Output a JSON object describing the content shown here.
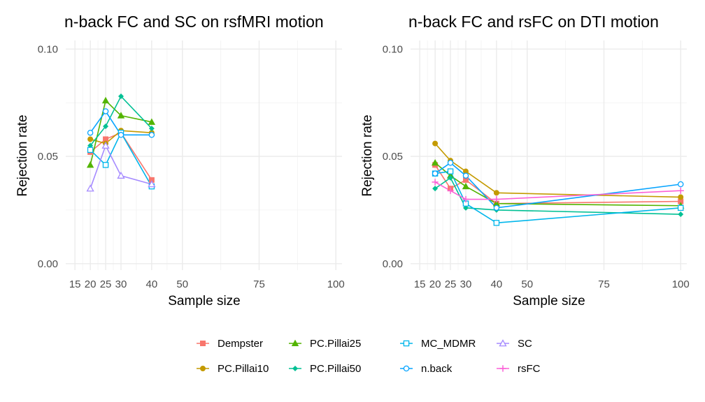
{
  "legend": {
    "position": "bottom",
    "entries": [
      {
        "name": "Dempster",
        "color": "#F8766D",
        "marker": "square-filled"
      },
      {
        "name": "PC.Pillai10",
        "color": "#C49A00",
        "marker": "circle-filled"
      },
      {
        "name": "PC.Pillai25",
        "color": "#53B400",
        "marker": "triangle-filled"
      },
      {
        "name": "PC.Pillai50",
        "color": "#00C094",
        "marker": "diamond-filled"
      },
      {
        "name": "MC_MDMR",
        "color": "#00B6EB",
        "marker": "square-open"
      },
      {
        "name": "n.back",
        "color": "#06A4FF",
        "marker": "circle-open"
      },
      {
        "name": "SC",
        "color": "#A58AFF",
        "marker": "triangle-open"
      },
      {
        "name": "rsFC",
        "color": "#FB61D7",
        "marker": "plus"
      }
    ]
  },
  "chart_data": [
    {
      "type": "line",
      "title": "n-back FC and SC on rsfMRI motion",
      "xlabel": "Sample size",
      "ylabel": "Rejection rate",
      "xticks": [
        15,
        20,
        25,
        30,
        40,
        50,
        75,
        100
      ],
      "yticks": [
        "0.00",
        "0.05",
        "0.10"
      ],
      "xlim": [
        12,
        102
      ],
      "ylim": [
        -0.003,
        0.104
      ],
      "grid": true,
      "series": [
        {
          "name": "Dempster",
          "x": [
            20,
            25,
            30,
            40
          ],
          "y": [
            0.052,
            0.058,
            0.061,
            0.039
          ]
        },
        {
          "name": "PC.Pillai10",
          "x": [
            20,
            25,
            30,
            40
          ],
          "y": [
            0.058,
            0.056,
            0.062,
            0.061
          ]
        },
        {
          "name": "PC.Pillai25",
          "x": [
            20,
            25,
            30,
            40
          ],
          "y": [
            0.046,
            0.076,
            0.069,
            0.066
          ]
        },
        {
          "name": "PC.Pillai50",
          "x": [
            20,
            25,
            30,
            40
          ],
          "y": [
            0.055,
            0.064,
            0.078,
            0.063
          ]
        },
        {
          "name": "MC_MDMR",
          "x": [
            20,
            25,
            30,
            40
          ],
          "y": [
            0.053,
            0.046,
            0.061,
            0.036
          ]
        },
        {
          "name": "n.back",
          "x": [
            20,
            25,
            30,
            40
          ],
          "y": [
            0.061,
            0.071,
            0.06,
            0.06
          ]
        },
        {
          "name": "SC",
          "x": [
            20,
            25,
            30,
            40
          ],
          "y": [
            0.035,
            0.055,
            0.041,
            0.037
          ]
        }
      ]
    },
    {
      "type": "line",
      "title": "n-back FC and rsFC on DTI motion",
      "xlabel": "Sample size",
      "ylabel": "Rejection rate",
      "xticks": [
        15,
        20,
        25,
        30,
        40,
        50,
        75,
        100
      ],
      "yticks": [
        "0.00",
        "0.05",
        "0.10"
      ],
      "xlim": [
        12,
        102
      ],
      "ylim": [
        -0.003,
        0.104
      ],
      "grid": true,
      "series": [
        {
          "name": "Dempster",
          "x": [
            20,
            25,
            30,
            40,
            100
          ],
          "y": [
            0.046,
            0.035,
            0.039,
            0.028,
            0.029
          ]
        },
        {
          "name": "PC.Pillai10",
          "x": [
            20,
            25,
            30,
            40,
            100
          ],
          "y": [
            0.056,
            0.048,
            0.043,
            0.033,
            0.031
          ]
        },
        {
          "name": "PC.Pillai25",
          "x": [
            20,
            25,
            30,
            40,
            100
          ],
          "y": [
            0.047,
            0.041,
            0.036,
            0.028,
            0.027
          ]
        },
        {
          "name": "PC.Pillai50",
          "x": [
            20,
            25,
            30,
            40,
            100
          ],
          "y": [
            0.035,
            0.04,
            0.026,
            0.025,
            0.023
          ]
        },
        {
          "name": "MC_MDMR",
          "x": [
            20,
            25,
            30,
            40,
            100
          ],
          "y": [
            0.042,
            0.043,
            0.028,
            0.019,
            0.026
          ]
        },
        {
          "name": "n.back",
          "x": [
            20,
            25,
            30,
            40,
            100
          ],
          "y": [
            0.042,
            0.047,
            0.041,
            0.026,
            0.037
          ]
        },
        {
          "name": "rsFC",
          "x": [
            20,
            25,
            30,
            40,
            100
          ],
          "y": [
            0.038,
            0.034,
            0.03,
            0.03,
            0.034
          ]
        }
      ]
    }
  ]
}
